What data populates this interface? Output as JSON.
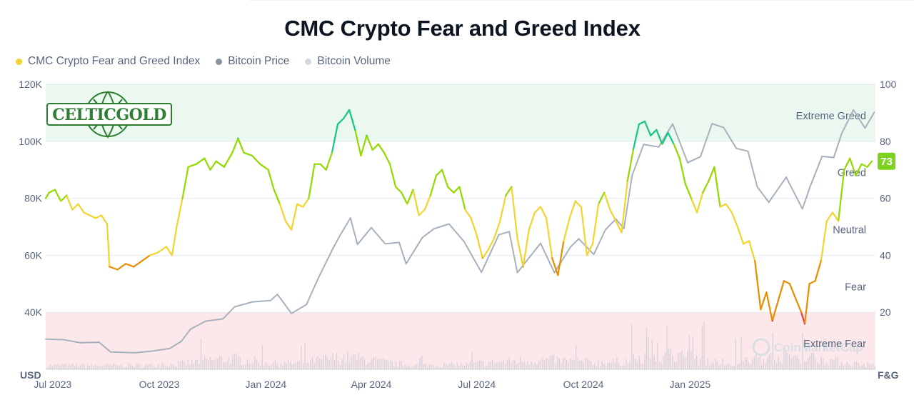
{
  "chart_data": {
    "type": "line",
    "title": "CMC Crypto Fear and Greed Index",
    "legend": [
      {
        "name": "CMC Crypto Fear and Greed Index",
        "color": "#F3D42F"
      },
      {
        "name": "Bitcoin Price",
        "color": "#8A939F"
      },
      {
        "name": "Bitcoin Volume",
        "color": "#D3D7DD"
      }
    ],
    "legend_placement": "top-left",
    "x_range": [
      "2023-06-25",
      "2025-06-10"
    ],
    "x_ticks": [
      {
        "label": "Jul 2023",
        "date": "2023-07-01"
      },
      {
        "label": "Oct 2023",
        "date": "2023-10-01"
      },
      {
        "label": "Jan 2024",
        "date": "2024-01-01"
      },
      {
        "label": "Apr 2024",
        "date": "2024-04-01"
      },
      {
        "label": "Jul 2024",
        "date": "2024-07-01"
      },
      {
        "label": "Oct 2024",
        "date": "2024-10-01"
      },
      {
        "label": "Jan 2025",
        "date": "2025-01-01"
      }
    ],
    "y_left": {
      "label": "USD",
      "range": [
        20000,
        120000
      ],
      "ticks": [
        {
          "value": 40000,
          "label": "40K"
        },
        {
          "value": 60000,
          "label": "60K"
        },
        {
          "value": 80000,
          "label": "80K"
        },
        {
          "value": 100000,
          "label": "100K"
        },
        {
          "value": 120000,
          "label": "120K"
        }
      ]
    },
    "y_right": {
      "label": "F&G",
      "range": [
        0,
        100
      ],
      "ticks": [
        {
          "value": 20,
          "label": "20"
        },
        {
          "value": 40,
          "label": "40"
        },
        {
          "value": 60,
          "label": "60"
        },
        {
          "value": 80,
          "label": "80"
        },
        {
          "value": 100,
          "label": "100"
        }
      ]
    },
    "zones": [
      {
        "label": "Extreme Greed",
        "from": 80,
        "to": 100,
        "color": "#EAF8EF",
        "label_value": 89
      },
      {
        "label": "Greed",
        "label_value": 69
      },
      {
        "label": "Neutral",
        "label_value": 49
      },
      {
        "label": "Fear",
        "label_value": 29
      },
      {
        "label": "Extreme Fear",
        "from": 0,
        "to": 20,
        "color": "#FCE8EA",
        "label_value": 9
      }
    ],
    "grid": true,
    "current_value": {
      "label": "73",
      "value": 73,
      "color": "#7ED321"
    },
    "series": [
      {
        "name": "CMC Crypto Fear and Greed Index",
        "axis": "right",
        "points": [
          [
            "2023-06-25",
            60
          ],
          [
            "2023-06-28",
            62
          ],
          [
            "2023-07-03",
            63
          ],
          [
            "2023-07-08",
            59
          ],
          [
            "2023-07-13",
            61
          ],
          [
            "2023-07-18",
            56
          ],
          [
            "2023-07-23",
            58
          ],
          [
            "2023-07-28",
            55
          ],
          [
            "2023-08-02",
            54
          ],
          [
            "2023-08-07",
            53
          ],
          [
            "2023-08-12",
            54
          ],
          [
            "2023-08-17",
            51
          ],
          [
            "2023-08-19",
            36
          ],
          [
            "2023-08-26",
            35
          ],
          [
            "2023-09-02",
            37
          ],
          [
            "2023-09-09",
            36
          ],
          [
            "2023-09-16",
            38
          ],
          [
            "2023-09-23",
            40
          ],
          [
            "2023-09-30",
            41
          ],
          [
            "2023-10-07",
            43
          ],
          [
            "2023-10-12",
            40
          ],
          [
            "2023-10-16",
            50
          ],
          [
            "2023-10-21",
            60
          ],
          [
            "2023-10-26",
            71
          ],
          [
            "2023-11-02",
            72
          ],
          [
            "2023-11-09",
            74
          ],
          [
            "2023-11-14",
            70
          ],
          [
            "2023-11-19",
            73
          ],
          [
            "2023-11-26",
            71
          ],
          [
            "2023-12-03",
            76
          ],
          [
            "2023-12-08",
            81
          ],
          [
            "2023-12-13",
            76
          ],
          [
            "2023-12-20",
            75
          ],
          [
            "2023-12-27",
            72
          ],
          [
            "2024-01-03",
            70
          ],
          [
            "2024-01-08",
            63
          ],
          [
            "2024-01-13",
            58
          ],
          [
            "2024-01-18",
            52
          ],
          [
            "2024-01-23",
            49
          ],
          [
            "2024-01-28",
            58
          ],
          [
            "2024-02-02",
            57
          ],
          [
            "2024-02-07",
            60
          ],
          [
            "2024-02-12",
            72
          ],
          [
            "2024-02-17",
            72
          ],
          [
            "2024-02-22",
            70
          ],
          [
            "2024-02-27",
            76
          ],
          [
            "2024-03-03",
            86
          ],
          [
            "2024-03-08",
            88
          ],
          [
            "2024-03-13",
            91
          ],
          [
            "2024-03-18",
            84
          ],
          [
            "2024-03-23",
            75
          ],
          [
            "2024-03-28",
            82
          ],
          [
            "2024-04-02",
            77
          ],
          [
            "2024-04-07",
            79
          ],
          [
            "2024-04-12",
            76
          ],
          [
            "2024-04-17",
            72
          ],
          [
            "2024-04-22",
            64
          ],
          [
            "2024-04-27",
            62
          ],
          [
            "2024-05-02",
            58
          ],
          [
            "2024-05-07",
            63
          ],
          [
            "2024-05-12",
            54
          ],
          [
            "2024-05-17",
            56
          ],
          [
            "2024-05-22",
            61
          ],
          [
            "2024-05-27",
            68
          ],
          [
            "2024-06-01",
            70
          ],
          [
            "2024-06-06",
            64
          ],
          [
            "2024-06-11",
            62
          ],
          [
            "2024-06-16",
            64
          ],
          [
            "2024-06-21",
            56
          ],
          [
            "2024-06-26",
            53
          ],
          [
            "2024-07-01",
            47
          ],
          [
            "2024-07-06",
            39
          ],
          [
            "2024-07-11",
            42
          ],
          [
            "2024-07-16",
            46
          ],
          [
            "2024-07-21",
            52
          ],
          [
            "2024-07-26",
            61
          ],
          [
            "2024-07-31",
            64
          ],
          [
            "2024-08-05",
            46
          ],
          [
            "2024-08-10",
            36
          ],
          [
            "2024-08-15",
            49
          ],
          [
            "2024-08-20",
            55
          ],
          [
            "2024-08-25",
            57
          ],
          [
            "2024-08-30",
            53
          ],
          [
            "2024-09-04",
            39
          ],
          [
            "2024-09-09",
            33
          ],
          [
            "2024-09-14",
            45
          ],
          [
            "2024-09-19",
            53
          ],
          [
            "2024-09-24",
            59
          ],
          [
            "2024-09-29",
            57
          ],
          [
            "2024-10-04",
            40
          ],
          [
            "2024-10-09",
            44
          ],
          [
            "2024-10-14",
            58
          ],
          [
            "2024-10-19",
            62
          ],
          [
            "2024-10-24",
            56
          ],
          [
            "2024-10-29",
            52
          ],
          [
            "2024-11-03",
            48
          ],
          [
            "2024-11-08",
            66
          ],
          [
            "2024-11-13",
            77
          ],
          [
            "2024-11-18",
            86
          ],
          [
            "2024-11-23",
            87
          ],
          [
            "2024-11-28",
            82
          ],
          [
            "2024-12-03",
            84
          ],
          [
            "2024-12-08",
            79
          ],
          [
            "2024-12-13",
            83
          ],
          [
            "2024-12-18",
            79
          ],
          [
            "2024-12-23",
            74
          ],
          [
            "2024-12-28",
            65
          ],
          [
            "2025-01-02",
            60
          ],
          [
            "2025-01-07",
            55
          ],
          [
            "2025-01-12",
            62
          ],
          [
            "2025-01-17",
            66
          ],
          [
            "2025-01-22",
            71
          ],
          [
            "2025-01-27",
            57
          ],
          [
            "2025-02-01",
            58
          ],
          [
            "2025-02-06",
            55
          ],
          [
            "2025-02-11",
            50
          ],
          [
            "2025-02-16",
            44
          ],
          [
            "2025-02-21",
            45
          ],
          [
            "2025-02-26",
            38
          ],
          [
            "2025-03-03",
            21
          ],
          [
            "2025-03-08",
            27
          ],
          [
            "2025-03-13",
            17
          ],
          [
            "2025-03-18",
            24
          ],
          [
            "2025-03-23",
            31
          ],
          [
            "2025-03-28",
            30
          ],
          [
            "2025-04-02",
            25
          ],
          [
            "2025-04-07",
            20
          ],
          [
            "2025-04-10",
            16
          ],
          [
            "2025-04-14",
            30
          ],
          [
            "2025-04-19",
            31
          ],
          [
            "2025-04-24",
            38
          ],
          [
            "2025-04-29",
            52
          ],
          [
            "2025-05-04",
            55
          ],
          [
            "2025-05-09",
            52
          ],
          [
            "2025-05-14",
            70
          ],
          [
            "2025-05-19",
            74
          ],
          [
            "2025-05-24",
            68
          ],
          [
            "2025-05-29",
            72
          ],
          [
            "2025-06-03",
            71
          ],
          [
            "2025-06-07",
            73
          ]
        ]
      },
      {
        "name": "Bitcoin Price",
        "axis": "left",
        "points": [
          [
            "2023-06-25",
            30600
          ],
          [
            "2023-07-10",
            30400
          ],
          [
            "2023-07-25",
            29300
          ],
          [
            "2023-08-10",
            29500
          ],
          [
            "2023-08-20",
            26100
          ],
          [
            "2023-09-10",
            25800
          ],
          [
            "2023-09-25",
            26400
          ],
          [
            "2023-10-10",
            27300
          ],
          [
            "2023-10-20",
            29800
          ],
          [
            "2023-10-28",
            34100
          ],
          [
            "2023-11-10",
            36900
          ],
          [
            "2023-11-25",
            37700
          ],
          [
            "2023-12-05",
            41900
          ],
          [
            "2023-12-20",
            43600
          ],
          [
            "2024-01-05",
            44100
          ],
          [
            "2024-01-11",
            46300
          ],
          [
            "2024-01-23",
            39600
          ],
          [
            "2024-02-05",
            42700
          ],
          [
            "2024-02-15",
            51800
          ],
          [
            "2024-02-28",
            62500
          ],
          [
            "2024-03-05",
            67000
          ],
          [
            "2024-03-14",
            73100
          ],
          [
            "2024-03-20",
            63800
          ],
          [
            "2024-04-01",
            69700
          ],
          [
            "2024-04-13",
            64000
          ],
          [
            "2024-04-25",
            64500
          ],
          [
            "2024-05-01",
            57000
          ],
          [
            "2024-05-15",
            66200
          ],
          [
            "2024-05-25",
            69300
          ],
          [
            "2024-06-07",
            71000
          ],
          [
            "2024-06-20",
            64800
          ],
          [
            "2024-07-05",
            54000
          ],
          [
            "2024-07-20",
            67200
          ],
          [
            "2024-07-29",
            68300
          ],
          [
            "2024-08-05",
            53900
          ],
          [
            "2024-08-25",
            64200
          ],
          [
            "2024-09-06",
            53900
          ],
          [
            "2024-09-20",
            63000
          ],
          [
            "2024-09-27",
            65800
          ],
          [
            "2024-10-10",
            60300
          ],
          [
            "2024-10-20",
            69000
          ],
          [
            "2024-10-29",
            72700
          ],
          [
            "2024-11-05",
            69400
          ],
          [
            "2024-11-12",
            88000
          ],
          [
            "2024-11-22",
            98900
          ],
          [
            "2024-12-05",
            98000
          ],
          [
            "2024-12-17",
            106100
          ],
          [
            "2024-12-30",
            92500
          ],
          [
            "2025-01-10",
            94600
          ],
          [
            "2025-01-20",
            106200
          ],
          [
            "2025-01-30",
            104800
          ],
          [
            "2025-02-10",
            97500
          ],
          [
            "2025-02-20",
            96500
          ],
          [
            "2025-02-28",
            84000
          ],
          [
            "2025-03-10",
            78600
          ],
          [
            "2025-03-25",
            87400
          ],
          [
            "2025-04-08",
            76300
          ],
          [
            "2025-04-15",
            84500
          ],
          [
            "2025-04-25",
            94700
          ],
          [
            "2025-05-05",
            94300
          ],
          [
            "2025-05-12",
            102800
          ],
          [
            "2025-05-22",
            111000
          ],
          [
            "2025-06-01",
            104600
          ],
          [
            "2025-06-09",
            110200
          ]
        ]
      }
    ]
  },
  "logo": {
    "wordmark": "CELTICGOLD"
  },
  "watermark": {
    "text": "CoinMarketCap"
  }
}
